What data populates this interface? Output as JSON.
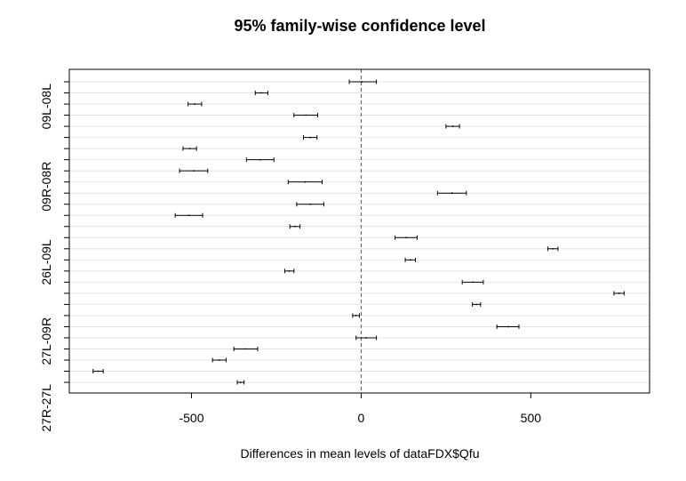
{
  "chart_data": {
    "type": "interval",
    "title": "95% family-wise confidence level",
    "xlabel": "Differences in mean levels of dataFDX$Qfu",
    "xlim": [
      -860,
      850
    ],
    "x_ticks": [
      -500,
      0,
      500
    ],
    "x_tick_labels": [
      "-500",
      "0",
      "500"
    ],
    "reference_line": 0,
    "grid": "horizontal",
    "y_tick_labels": [
      "09L-08L",
      "09R-08R",
      "26L-09L",
      "27L-09R",
      "27R-27L"
    ],
    "intervals": [
      {
        "lwr": -35,
        "diff": 2,
        "upr": 45
      },
      {
        "lwr": -312,
        "diff": -295,
        "upr": -275
      },
      {
        "lwr": -510,
        "diff": -490,
        "upr": -470
      },
      {
        "lwr": -198,
        "diff": -163,
        "upr": -128
      },
      {
        "lwr": 250,
        "diff": 270,
        "upr": 290
      },
      {
        "lwr": -170,
        "diff": -150,
        "upr": -130
      },
      {
        "lwr": -525,
        "diff": -505,
        "upr": -485
      },
      {
        "lwr": -338,
        "diff": -297,
        "upr": -257
      },
      {
        "lwr": -535,
        "diff": -493,
        "upr": -452
      },
      {
        "lwr": -215,
        "diff": -165,
        "upr": -115
      },
      {
        "lwr": 225,
        "diff": 268,
        "upr": 310
      },
      {
        "lwr": -190,
        "diff": -150,
        "upr": -110
      },
      {
        "lwr": -548,
        "diff": -507,
        "upr": -467
      },
      {
        "lwr": -210,
        "diff": -195,
        "upr": -180
      },
      {
        "lwr": 100,
        "diff": 133,
        "upr": 165
      },
      {
        "lwr": 550,
        "diff": 565,
        "upr": 580
      },
      {
        "lwr": 130,
        "diff": 145,
        "upr": 160
      },
      {
        "lwr": -225,
        "diff": -212,
        "upr": -198
      },
      {
        "lwr": 298,
        "diff": 330,
        "upr": 360
      },
      {
        "lwr": 745,
        "diff": 760,
        "upr": 775
      },
      {
        "lwr": 328,
        "diff": 340,
        "upr": 352
      },
      {
        "lwr": -25,
        "diff": -15,
        "upr": -5
      },
      {
        "lwr": 400,
        "diff": 433,
        "upr": 465
      },
      {
        "lwr": -15,
        "diff": 15,
        "upr": 45
      },
      {
        "lwr": -375,
        "diff": -340,
        "upr": -305
      },
      {
        "lwr": -438,
        "diff": -418,
        "upr": -398
      },
      {
        "lwr": -790,
        "diff": -775,
        "upr": -760
      },
      {
        "lwr": -365,
        "diff": -355,
        "upr": -345
      }
    ]
  }
}
